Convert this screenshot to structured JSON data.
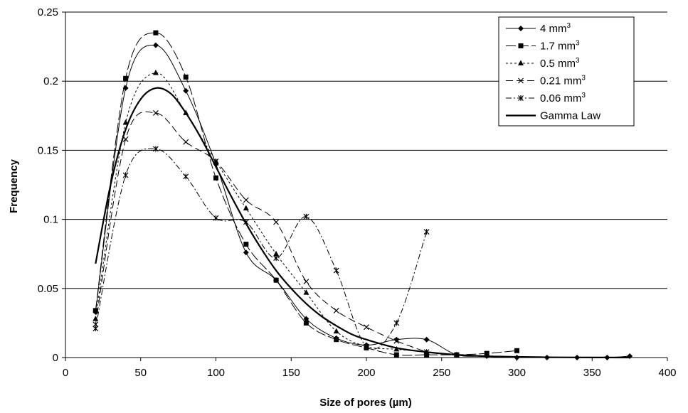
{
  "chart_data": {
    "type": "line",
    "xlabel": "Size of pores (µm)",
    "ylabel": "Frequency",
    "xlim": [
      0,
      400
    ],
    "ylim": [
      0,
      0.25
    ],
    "x_ticks": [
      "0",
      "50",
      "100",
      "150",
      "200",
      "250",
      "300",
      "350",
      "400"
    ],
    "y_ticks": [
      "0",
      "0.05",
      "0.1",
      "0.15",
      "0.2",
      "0.25"
    ],
    "grid": "horizontal",
    "legend_position": "top-right",
    "series": [
      {
        "name": "4 mm",
        "name_sup": "3",
        "marker": "diamond",
        "dash": "",
        "points": [
          [
            20,
            0.033
          ],
          [
            40,
            0.195
          ],
          [
            60,
            0.226
          ],
          [
            80,
            0.193
          ],
          [
            100,
            0.14
          ],
          [
            120,
            0.076
          ],
          [
            140,
            0.056
          ],
          [
            160,
            0.028
          ],
          [
            180,
            0.014
          ],
          [
            200,
            0.009
          ],
          [
            220,
            0.013
          ],
          [
            240,
            0.013
          ],
          [
            260,
            0.002
          ],
          [
            280,
            0.001
          ],
          [
            300,
            0.0
          ],
          [
            320,
            0.0
          ],
          [
            340,
            0.0
          ],
          [
            360,
            0.0
          ],
          [
            375,
            0.001
          ]
        ]
      },
      {
        "name": "1.7 mm",
        "name_sup": "3",
        "marker": "square",
        "dash": "14,4",
        "points": [
          [
            20,
            0.034
          ],
          [
            40,
            0.202
          ],
          [
            60,
            0.235
          ],
          [
            80,
            0.203
          ],
          [
            100,
            0.13
          ],
          [
            120,
            0.082
          ],
          [
            140,
            0.056
          ],
          [
            160,
            0.025
          ],
          [
            180,
            0.013
          ],
          [
            200,
            0.007
          ],
          [
            220,
            0.002
          ],
          [
            240,
            0.002
          ],
          [
            260,
            0.002
          ],
          [
            280,
            0.003
          ],
          [
            300,
            0.005
          ]
        ]
      },
      {
        "name": "0.5 mm",
        "name_sup": "3",
        "marker": "triangle",
        "dash": "3,3",
        "points": [
          [
            20,
            0.028
          ],
          [
            40,
            0.17
          ],
          [
            60,
            0.206
          ],
          [
            80,
            0.177
          ],
          [
            100,
            0.142
          ],
          [
            120,
            0.108
          ],
          [
            140,
            0.075
          ],
          [
            160,
            0.047
          ],
          [
            180,
            0.019
          ],
          [
            200,
            0.008
          ],
          [
            220,
            0.006
          ],
          [
            240,
            0.004
          ],
          [
            260,
            0.002
          ]
        ]
      },
      {
        "name": "0.21 mm",
        "name_sup": "3",
        "marker": "x",
        "dash": "10,5",
        "points": [
          [
            20,
            0.024
          ],
          [
            40,
            0.158
          ],
          [
            60,
            0.177
          ],
          [
            80,
            0.156
          ],
          [
            100,
            0.142
          ],
          [
            120,
            0.114
          ],
          [
            140,
            0.098
          ],
          [
            160,
            0.055
          ],
          [
            180,
            0.034
          ],
          [
            200,
            0.022
          ],
          [
            220,
            0.012
          ],
          [
            240,
            0.004
          ]
        ]
      },
      {
        "name": "0.06 mm",
        "name_sup": "3",
        "marker": "asterisk",
        "dash": "8,3,2,3",
        "points": [
          [
            20,
            0.021
          ],
          [
            40,
            0.132
          ],
          [
            60,
            0.151
          ],
          [
            80,
            0.131
          ],
          [
            100,
            0.101
          ],
          [
            120,
            0.098
          ],
          [
            140,
            0.072
          ],
          [
            160,
            0.102
          ],
          [
            180,
            0.063
          ],
          [
            200,
            0.008
          ],
          [
            220,
            0.025
          ],
          [
            240,
            0.091
          ]
        ]
      },
      {
        "name": "Gamma Law",
        "name_sup": "",
        "marker": "none",
        "dash": "",
        "bold": true,
        "points": [
          [
            20,
            0.068
          ],
          [
            30,
            0.125
          ],
          [
            40,
            0.165
          ],
          [
            50,
            0.187
          ],
          [
            60,
            0.195
          ],
          [
            70,
            0.191
          ],
          [
            80,
            0.177
          ],
          [
            90,
            0.159
          ],
          [
            100,
            0.138
          ],
          [
            110,
            0.117
          ],
          [
            120,
            0.097
          ],
          [
            130,
            0.079
          ],
          [
            140,
            0.063
          ],
          [
            150,
            0.05
          ],
          [
            160,
            0.039
          ],
          [
            170,
            0.03
          ],
          [
            180,
            0.023
          ],
          [
            190,
            0.017
          ],
          [
            200,
            0.013
          ],
          [
            220,
            0.007
          ],
          [
            240,
            0.004
          ],
          [
            260,
            0.002
          ],
          [
            280,
            0.001
          ],
          [
            300,
            0.0005
          ],
          [
            320,
            0.0002
          ],
          [
            340,
            0.0001
          ],
          [
            375,
            0.0
          ]
        ]
      }
    ]
  }
}
